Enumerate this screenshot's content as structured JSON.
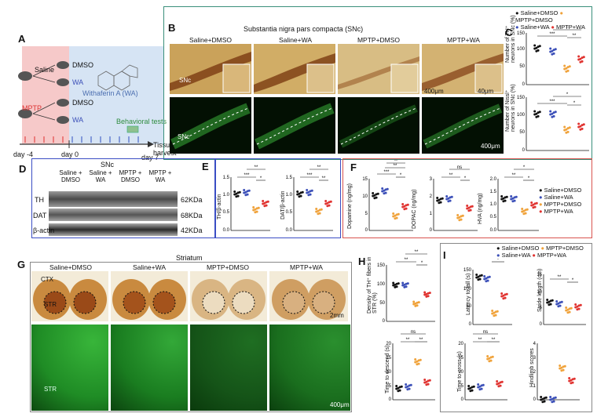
{
  "colors": {
    "saline_dmso": "#111111",
    "saline_wa": "#3b4fb8",
    "mptp_dmso": "#f0a23a",
    "mptp_wa": "#e0322f",
    "frameB": "#3a8f7b",
    "frameD": "#3a4dc4",
    "frameF": "#d9534f"
  },
  "panelA": {
    "label": "A",
    "groups": [
      "Saline",
      "MPTP"
    ],
    "treatments": [
      "DMSO",
      "WA",
      "DMSO",
      "WA"
    ],
    "drug": "Withaferin A (WA)",
    "tests": "Behavioral tests",
    "harvest": [
      "Tissue",
      "harvest"
    ],
    "days": [
      "day -4",
      "day 0",
      "day 7"
    ]
  },
  "panelB": {
    "label": "B",
    "title": "Substantia nigra pars compacta (SNc)",
    "columns": [
      "Saline+DMSO",
      "Saline+WA",
      "MPTP+DMSO",
      "MPTP+WA"
    ],
    "region": "SNc",
    "scale_inset": "400μm",
    "scale_inset2": "40μm",
    "scale_bottom": "400μm"
  },
  "panelC": {
    "label": "C",
    "legend": [
      "Saline+DMSO",
      "MPTP+DMSO",
      "Saline+WA",
      "MPTP+WA"
    ],
    "ylabel_top": "Number of TH⁺ neurons in SNc (%)",
    "ylabel_bottom": "Number of Nissl⁺ neurons in SNc (%)",
    "ticks_top": [
      "150",
      "100",
      "50",
      "0"
    ],
    "ticks_bottom": [
      "150",
      "100",
      "50",
      "0"
    ],
    "sig_top": [
      "***",
      "**",
      "**",
      "***"
    ],
    "sig_bottom": [
      "*",
      "***",
      "*"
    ]
  },
  "panelD": {
    "label": "D",
    "title": "SNc",
    "lanes": [
      "Saline + DMSO",
      "Saline + WA",
      "MPTP + DMSO",
      "MPTP + WA"
    ],
    "rows": [
      "TH",
      "DAT",
      "β-actin"
    ],
    "sizes": [
      "62KDa",
      "68KDa",
      "42KDa"
    ]
  },
  "panelE": {
    "label": "E",
    "ylabels": [
      "TH/β-actin",
      "DAT/β-actin"
    ],
    "ticks": [
      "1.5",
      "1.0",
      "0.5",
      "0.0"
    ],
    "sig1": [
      "**",
      "***",
      "*"
    ],
    "sig2": [
      "**",
      "***",
      "**"
    ]
  },
  "panelF": {
    "label": "F",
    "ylabels": [
      "Dopamine (ng/mg)",
      "DOPAC (ng/mg)",
      "HVA (ng/mg)"
    ],
    "ticks_da": [
      "15",
      "10",
      "5",
      "0"
    ],
    "ticks_dopac": [
      "3",
      "2",
      "1",
      "0"
    ],
    "ticks_hva": [
      "2.0",
      "1.5",
      "1.0",
      "0.5",
      "0.0"
    ],
    "legend": [
      "Saline+DMSO",
      "Saline+WA",
      "MPTP+DMSO",
      "MPTP+WA"
    ],
    "sig_da": [
      "**",
      "***",
      "*",
      "**"
    ],
    "sig_dopac": [
      "ns",
      "**",
      "*"
    ],
    "sig_hva": [
      "*",
      "**",
      "*"
    ]
  },
  "panelG": {
    "label": "G",
    "title": "Striatum",
    "columns": [
      "Saline+DMSO",
      "Saline+WA",
      "MPTP+DMSO",
      "MPTP+WA"
    ],
    "regions": [
      "CTX",
      "STR"
    ],
    "scale_top": "2mm",
    "scale_bottom": "400μm",
    "region_bottom": "STR"
  },
  "panelH": {
    "label": "H",
    "ylabel": "Density of TH⁺ fibers in STR (%)",
    "ticks": [
      "150",
      "100",
      "50",
      "0"
    ],
    "sig": [
      "**",
      "**",
      "*"
    ]
  },
  "panelI": {
    "label": "I",
    "legend": [
      "Saline+DMSO",
      "MPTP+DMSO",
      "Saline+WA",
      "MPTP+WA"
    ],
    "ylabels": [
      "Latency to fall (s)",
      "Stride length (cm)",
      "Time to descend (s)",
      "Time to cross (s)",
      "Hindlimb scores"
    ],
    "ticks_latency": [
      "150",
      "100",
      "50",
      "0"
    ],
    "ticks_stride": [
      "15",
      "10",
      "5",
      "0"
    ],
    "ticks_descend": [
      "20",
      "15",
      "10",
      "5",
      "0"
    ],
    "ticks_cross": [
      "20",
      "15",
      "10",
      "5",
      "0"
    ],
    "ticks_hind": [
      "4",
      "3",
      "2",
      "1",
      "0"
    ],
    "sig_latency": [
      "ns",
      "*",
      "*"
    ],
    "sig_stride": [
      "**",
      "*"
    ],
    "sig_descend": [
      "ns",
      "**",
      "**"
    ],
    "sig_cross": [
      "ns",
      "**",
      "**"
    ]
  }
}
